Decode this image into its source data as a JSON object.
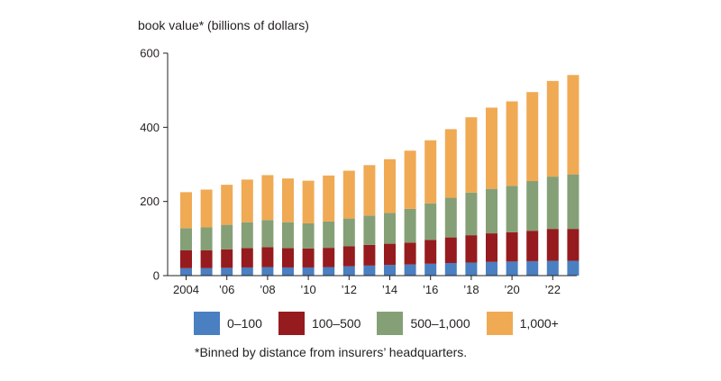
{
  "chart_data": {
    "type": "bar",
    "stacked": true,
    "ylabel": "book value* (billions of dollars)",
    "ylim": [
      0,
      600
    ],
    "yticks": [
      0,
      200,
      400,
      600
    ],
    "grid": false,
    "categories": [
      "2004",
      "2005",
      "2006",
      "2007",
      "2008",
      "2009",
      "2010",
      "2011",
      "2012",
      "2013",
      "2014",
      "2015",
      "2016",
      "2017",
      "2018",
      "2019",
      "2020",
      "2021",
      "2022",
      "2023"
    ],
    "xtick_labels": [
      {
        "category": "2004",
        "label": "2004"
      },
      {
        "category": "2006",
        "label": "’06"
      },
      {
        "category": "2008",
        "label": "’08"
      },
      {
        "category": "2010",
        "label": "’10"
      },
      {
        "category": "2012",
        "label": "’12"
      },
      {
        "category": "2014",
        "label": "’14"
      },
      {
        "category": "2016",
        "label": "’16"
      },
      {
        "category": "2018",
        "label": "’18"
      },
      {
        "category": "2020",
        "label": "’20"
      },
      {
        "category": "2022",
        "label": "’22"
      }
    ],
    "series": [
      {
        "name": "0–100",
        "color": "#4a7fc1",
        "values": [
          20,
          20,
          21,
          22,
          23,
          22,
          22,
          23,
          25,
          27,
          29,
          30,
          32,
          34,
          35,
          37,
          38,
          39,
          40,
          40
        ]
      },
      {
        "name": "100–500",
        "color": "#961b1e",
        "values": [
          48,
          48,
          50,
          52,
          54,
          52,
          51,
          52,
          54,
          56,
          57,
          59,
          64,
          69,
          74,
          77,
          79,
          82,
          86,
          86
        ]
      },
      {
        "name": "500–1,000",
        "color": "#85a077",
        "values": [
          60,
          62,
          66,
          70,
          73,
          70,
          68,
          71,
          75,
          79,
          83,
          91,
          99,
          107,
          115,
          120,
          125,
          134,
          141,
          147
        ]
      },
      {
        "name": "1,000+",
        "color": "#f0aa54",
        "values": [
          97,
          102,
          108,
          115,
          121,
          118,
          115,
          124,
          129,
          136,
          145,
          157,
          170,
          185,
          203,
          219,
          228,
          240,
          258,
          268
        ]
      }
    ]
  },
  "footnote": "*Binned by distance from insurers’ headquarters."
}
